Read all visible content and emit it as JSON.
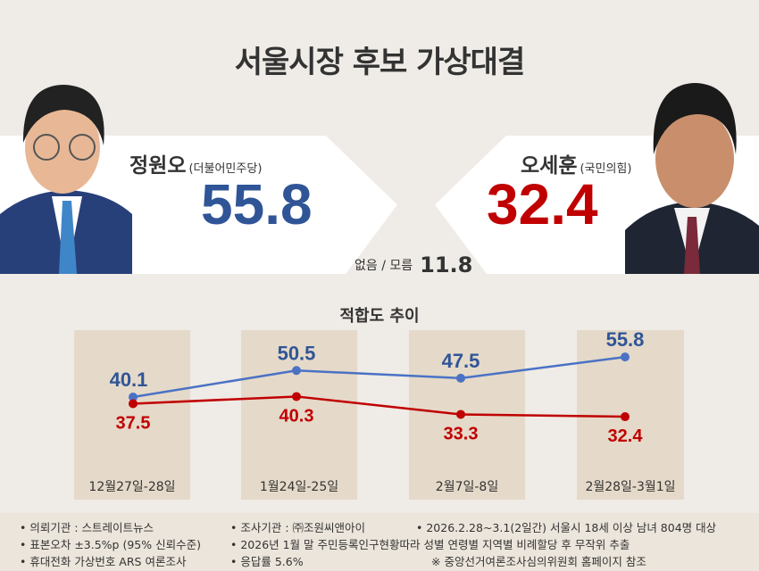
{
  "title": "서울시장 후보 가상대결",
  "candidates": [
    {
      "name": "정원오",
      "party": "(더불어민주당)",
      "value": "55.8",
      "color": "#2f5597"
    },
    {
      "name": "오세훈",
      "party": "(국민의힘)",
      "value": "32.4",
      "color": "#c00000"
    }
  ],
  "undecided": {
    "label": "없음 / 모름",
    "value": "11.8"
  },
  "chart_data": {
    "type": "line",
    "title": "적합도 추이",
    "categories": [
      "12월27일-28일",
      "1월24일-25일",
      "2월7일-8일",
      "2월28일-3월1일"
    ],
    "series": [
      {
        "name": "정원오",
        "color": "#4a72c4",
        "values": [
          40.1,
          50.5,
          47.5,
          55.8
        ]
      },
      {
        "name": "오세훈",
        "color": "#c00000",
        "values": [
          37.5,
          40.3,
          33.3,
          32.4
        ]
      }
    ],
    "grid": false
  },
  "footer": [
    "• 의뢰기관 : 스트레이트뉴스",
    "• 조사기관 : ㈜조원씨앤아이",
    "• 2026.2.28~3.1(2일간) 서울시 18세 이상 남녀 804명 대상",
    "• 표본오차 ±3.5%p (95% 신뢰수준)",
    "• 2026년 1월 말 주민등록인구현황따라 성별 연령별 지역별 비례할당 후 무작위 추출",
    "• 휴대전화 가상번호 ARS 여론조사",
    "• 응답률 5.6%",
    "※ 중앙선거여론조사심의위원회 홈페이지 참조"
  ]
}
